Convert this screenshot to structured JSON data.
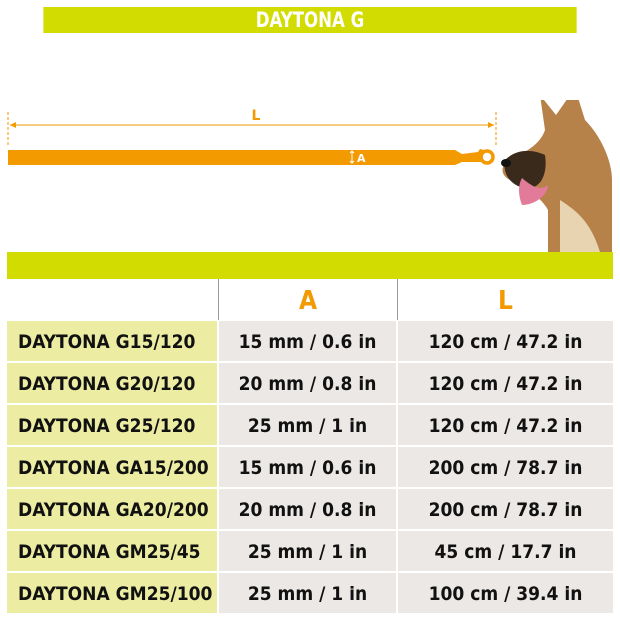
{
  "title": "DAYTONA G",
  "diagram": {
    "length_label": "L",
    "width_label": "A",
    "leash_color": "#f29a00"
  },
  "table": {
    "headers": [
      "",
      "A",
      "L"
    ],
    "rows": [
      [
        "DAYTONA G15/120",
        "15 mm / 0.6 in",
        "120 cm / 47.2 in"
      ],
      [
        "DAYTONA G20/120",
        "20 mm / 0.8 in",
        "120 cm / 47.2 in"
      ],
      [
        "DAYTONA G25/120",
        "25 mm / 1 in",
        "120 cm / 47.2 in"
      ],
      [
        "DAYTONA GA15/200",
        "15 mm / 0.6 in",
        "200 cm / 78.7 in"
      ],
      [
        "DAYTONA GA20/200",
        "20 mm / 0.8 in",
        "200 cm / 78.7 in"
      ],
      [
        "DAYTONA GM25/45",
        "25 mm / 1 in",
        "45 cm / 17.7 in"
      ],
      [
        "DAYTONA GM25/100",
        "25 mm / 1 in",
        "100 cm / 39.4 in"
      ]
    ]
  },
  "colors": {
    "accent": "#d2dc00",
    "orange": "#f29a00",
    "model_cell": "#eceda3",
    "value_cell": "#ebe8e5"
  }
}
